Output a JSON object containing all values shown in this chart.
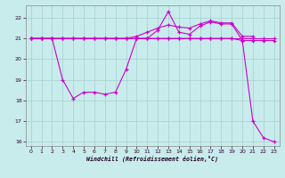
{
  "xlabel": "Windchill (Refroidissement éolien,°C)",
  "background_color": "#c8ecec",
  "grid_color": "#aad4d4",
  "line_color": "#cc00cc",
  "xlim": [
    -0.5,
    23.5
  ],
  "ylim": [
    15.8,
    22.6
  ],
  "yticks": [
    16,
    17,
    18,
    19,
    20,
    21,
    22
  ],
  "xticks": [
    0,
    1,
    2,
    3,
    4,
    5,
    6,
    7,
    8,
    9,
    10,
    11,
    12,
    13,
    14,
    15,
    16,
    17,
    18,
    19,
    20,
    21,
    22,
    23
  ],
  "series_temp_x": [
    0,
    1,
    2,
    3,
    4,
    5,
    6,
    7,
    8,
    9,
    10,
    11,
    12,
    13,
    14,
    15,
    16,
    17,
    18,
    19,
    20,
    21,
    22,
    23
  ],
  "series_temp_y": [
    21.0,
    21.0,
    21.0,
    21.0,
    21.0,
    21.0,
    21.0,
    21.0,
    21.0,
    21.0,
    21.0,
    21.0,
    21.0,
    21.0,
    21.0,
    21.0,
    21.0,
    21.0,
    21.0,
    21.0,
    21.0,
    21.0,
    21.0,
    21.0
  ],
  "series_wc_x": [
    0,
    1,
    2,
    3,
    4,
    5,
    6,
    7,
    8,
    9,
    10,
    11,
    12,
    13,
    14,
    15,
    16,
    17,
    18,
    19,
    20,
    21,
    22,
    23
  ],
  "series_wc_y": [
    21.0,
    21.0,
    21.0,
    19.0,
    18.1,
    18.4,
    18.4,
    18.3,
    18.4,
    19.5,
    21.0,
    21.0,
    21.4,
    22.3,
    21.3,
    21.2,
    21.6,
    21.8,
    21.7,
    21.7,
    20.9,
    17.0,
    16.2,
    16.0
  ],
  "series_min_x": [
    0,
    1,
    2,
    3,
    4,
    5,
    6,
    7,
    8,
    9,
    10,
    11,
    12,
    13,
    14,
    15,
    16,
    17,
    18,
    19,
    20,
    21,
    22,
    23
  ],
  "series_min_y": [
    21.0,
    21.0,
    21.0,
    21.0,
    21.0,
    21.0,
    21.0,
    21.0,
    21.0,
    21.0,
    21.0,
    21.0,
    21.0,
    21.0,
    21.0,
    21.0,
    21.0,
    21.0,
    21.0,
    21.0,
    20.9,
    20.9,
    20.9,
    20.9
  ],
  "series_max_x": [
    0,
    1,
    2,
    3,
    4,
    5,
    6,
    7,
    8,
    9,
    10,
    11,
    12,
    13,
    14,
    15,
    16,
    17,
    18,
    19,
    20,
    21
  ],
  "series_max_y": [
    21.0,
    21.0,
    21.0,
    21.0,
    21.0,
    21.0,
    21.0,
    21.0,
    21.0,
    21.0,
    21.1,
    21.3,
    21.5,
    21.65,
    21.55,
    21.5,
    21.7,
    21.85,
    21.75,
    21.75,
    21.1,
    21.1
  ]
}
